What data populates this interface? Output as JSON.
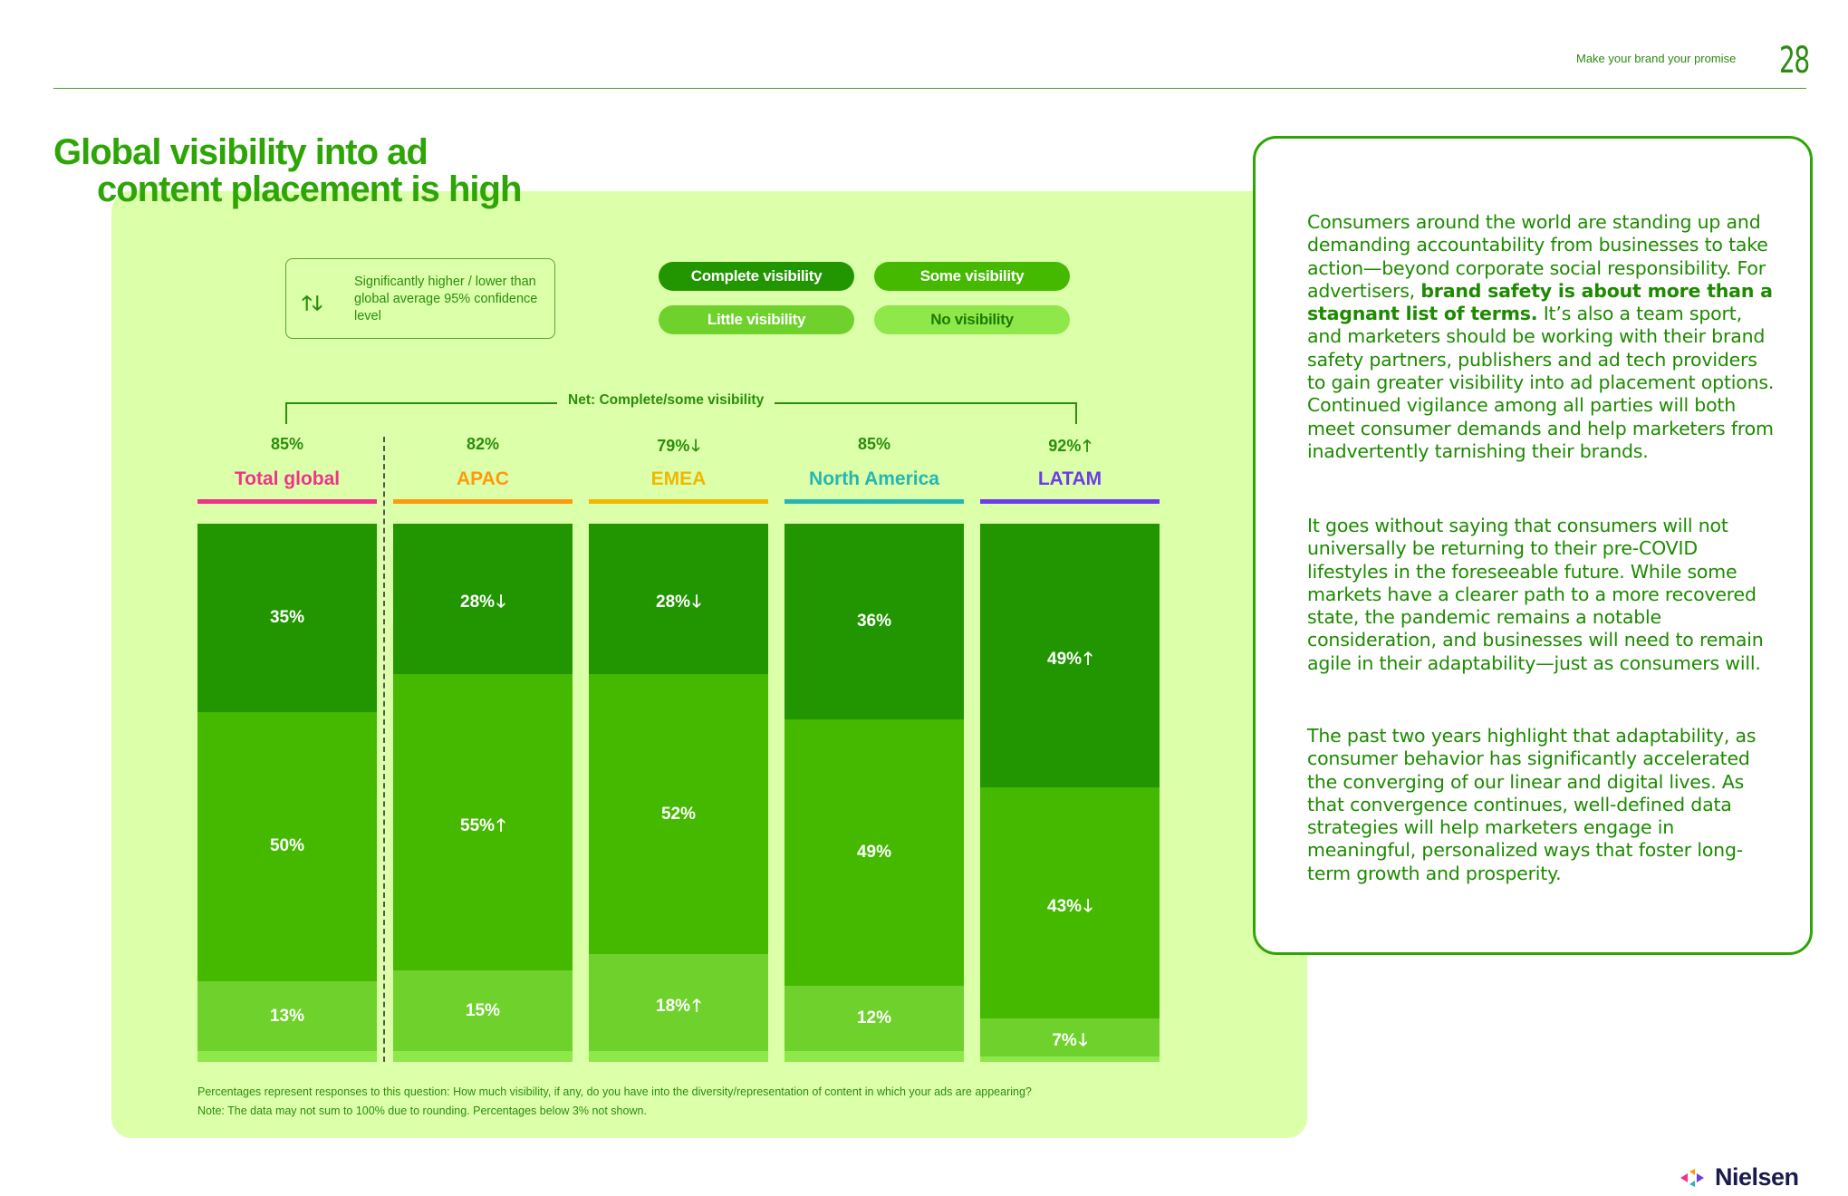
{
  "header": {
    "tagline": "Make your brand your promise",
    "page_number": "28"
  },
  "title": {
    "line1": "Global visibility into ad",
    "line2": "content placement is high"
  },
  "legend": {
    "significance_text": "Significantly higher / lower than global average 95% confidence level",
    "significance_icons": [
      "arrow-up-icon",
      "arrow-down-icon"
    ],
    "items": [
      {
        "label": "Complete visibility",
        "color": "#219600",
        "text_color": "#ffffff"
      },
      {
        "label": "Some visibility",
        "color": "#45b900",
        "text_color": "#ffffff"
      },
      {
        "label": "Little visibility",
        "color": "#6fd22c",
        "text_color": "#ffffff"
      },
      {
        "label": "No visibility",
        "color": "#8fe84a",
        "text_color": "#1d7a00"
      }
    ]
  },
  "bracket_label": "Net: Complete/some visibility",
  "arrow_up": "🡑",
  "arrow_down": "🡓",
  "chart_data": {
    "type": "bar",
    "stacked": true,
    "categories": [
      "Total global",
      "APAC",
      "EMEA",
      "North America",
      "LATAM"
    ],
    "category_colors": [
      "#f0338a",
      "#ff9a0a",
      "#f0b800",
      "#26b6b0",
      "#6a3de8"
    ],
    "net_complete_some": [
      "85%",
      "82%",
      "79%",
      "85%",
      "92%"
    ],
    "net_significance": [
      "",
      "",
      "down",
      "",
      "up"
    ],
    "series": [
      {
        "name": "Complete visibility",
        "values": [
          35,
          28,
          28,
          36,
          49
        ],
        "significance": [
          "",
          "down",
          "down",
          "",
          "up"
        ]
      },
      {
        "name": "Some visibility",
        "values": [
          50,
          55,
          52,
          49,
          43
        ],
        "significance": [
          "",
          "up",
          "",
          "",
          "down"
        ]
      },
      {
        "name": "Little visibility",
        "values": [
          13,
          15,
          18,
          12,
          7
        ],
        "significance": [
          "",
          "",
          "up",
          "",
          "down"
        ]
      },
      {
        "name": "No visibility",
        "values": [
          2,
          2,
          2,
          2,
          1
        ],
        "significance": [
          "",
          "",
          "",
          "",
          ""
        ]
      }
    ],
    "hidden_labels_below": 3
  },
  "footnotes": [
    "Percentages represent responses to this question: How much visibility, if any, do you have into the diversity/representation of content in which your ads are appearing?",
    "Note: The data may not sum to 100% due to rounding. Percentages below 3% not shown."
  ],
  "paragraphs": {
    "p1_before": "Consumers around the world are standing up and demanding accountability from businesses to take action—beyond corporate social responsibility. For advertisers, ",
    "p1_bold": "brand safety is about more than a stagnant list of terms.",
    "p1_after": " It’s also a team sport, and marketers should be working with their brand safety partners, publishers and ad tech providers to gain greater visibility into ad placement options. Continued vigilance among all parties will both meet consumer demands and help marketers from inadvertently tarnishing their brands.",
    "p2": "It goes without saying that consumers will not universally be returning to their pre-COVID lifestyles in the foreseeable future. While some markets have a clearer path to a more recovered state, the pandemic remains a notable consideration, and businesses will need to remain agile in their adaptability—just as consumers will.",
    "p3": "The past two years highlight that adaptability, as consumer behavior has significantly accelerated the converging of our linear and digital lives. As that convergence continues, well-defined data strategies will help marketers engage in meaningful, personalized ways that foster long-term growth and prosperity."
  },
  "logo": {
    "text": "Nielsen",
    "icon": "nielsen-arrows-icon"
  }
}
